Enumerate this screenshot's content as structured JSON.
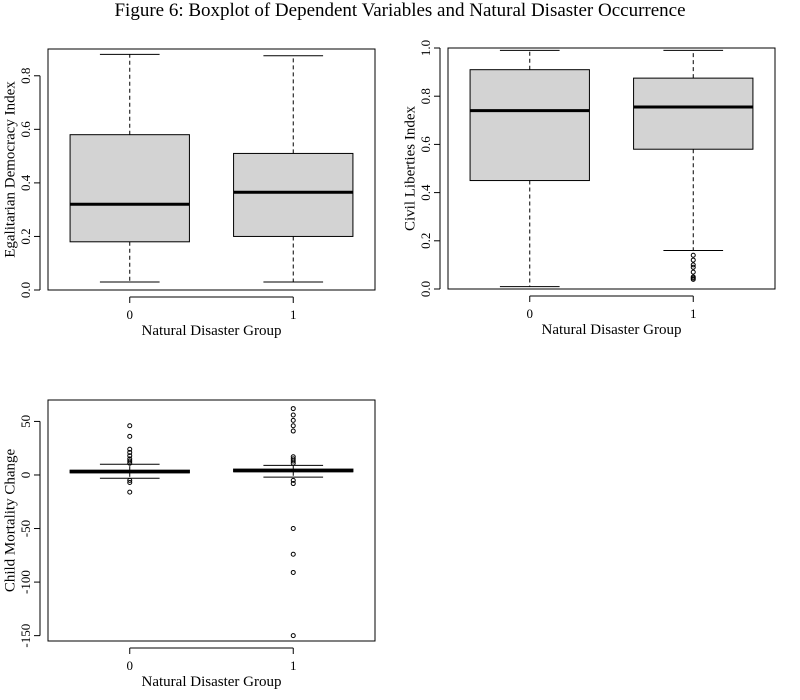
{
  "title": "Figure 6: Boxplot of Dependent Variables and Natural Disaster Occurrence",
  "chart_data": [
    {
      "type": "boxplot",
      "xlabel": "Natural Disaster Group",
      "ylabel": "Egalitarian Democracy Index",
      "categories": [
        "0",
        "1"
      ],
      "ylim": [
        0.0,
        0.9
      ],
      "yticks": [
        0.0,
        0.2,
        0.4,
        0.6,
        0.8
      ],
      "ytick_labels": [
        "0.0",
        "0.2",
        "0.4",
        "0.6",
        "0.8"
      ],
      "boxes": [
        {
          "category": "0",
          "whisker_low": 0.03,
          "q1": 0.18,
          "median": 0.32,
          "q3": 0.58,
          "whisker_high": 0.88,
          "outliers": []
        },
        {
          "category": "1",
          "whisker_low": 0.03,
          "q1": 0.2,
          "median": 0.365,
          "q3": 0.51,
          "whisker_high": 0.875,
          "outliers": []
        }
      ]
    },
    {
      "type": "boxplot",
      "xlabel": "Natural Disaster Group",
      "ylabel": "Civil Liberties Index",
      "categories": [
        "0",
        "1"
      ],
      "ylim": [
        0.0,
        1.0
      ],
      "yticks": [
        0.0,
        0.2,
        0.4,
        0.6,
        0.8,
        1.0
      ],
      "ytick_labels": [
        "0.0",
        "0.2",
        "0.4",
        "0.6",
        "0.8",
        "1.0"
      ],
      "boxes": [
        {
          "category": "0",
          "whisker_low": 0.01,
          "q1": 0.45,
          "median": 0.74,
          "q3": 0.91,
          "whisker_high": 0.99,
          "outliers": []
        },
        {
          "category": "1",
          "whisker_low": 0.16,
          "q1": 0.58,
          "median": 0.755,
          "q3": 0.875,
          "whisker_high": 0.99,
          "outliers": [
            0.14,
            0.12,
            0.1,
            0.09,
            0.07,
            0.05,
            0.045,
            0.04
          ]
        }
      ]
    },
    {
      "type": "boxplot",
      "xlabel": "Natural Disaster Group",
      "ylabel": "Child Mortality Change",
      "categories": [
        "0",
        "1"
      ],
      "ylim": [
        -155,
        70
      ],
      "yticks": [
        -150,
        -100,
        -50,
        0,
        50
      ],
      "ytick_labels": [
        "-150",
        "-100",
        "-50",
        "0",
        "50"
      ],
      "boxes": [
        {
          "category": "0",
          "whisker_low": -3,
          "q1": 2,
          "median": 3,
          "q3": 4.5,
          "whisker_high": 10,
          "outliers": [
            46,
            36,
            24,
            21,
            18,
            15,
            13,
            11,
            -5,
            -7,
            -16
          ]
        },
        {
          "category": "1",
          "whisker_low": -2,
          "q1": 3,
          "median": 4,
          "q3": 5.5,
          "whisker_high": 9,
          "outliers": [
            62,
            56,
            51,
            46,
            41,
            17,
            15,
            13,
            11,
            -5,
            -8,
            -50,
            -74,
            -91,
            -150
          ]
        }
      ]
    }
  ]
}
